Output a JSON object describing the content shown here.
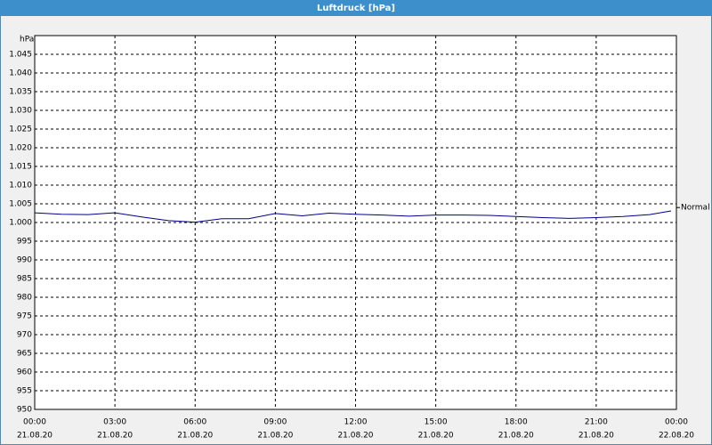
{
  "chart_data": {
    "type": "line",
    "title": "Luftdruck [hPa]",
    "y_unit": "hPa",
    "x": [
      0,
      1,
      2,
      3,
      4,
      5,
      6,
      7,
      8,
      9,
      10,
      11,
      12,
      13,
      14,
      15,
      16,
      17,
      18,
      19,
      20,
      21,
      22,
      23,
      23.8
    ],
    "series": [
      {
        "color": "#00008b",
        "values": [
          1002.6,
          1002.2,
          1002.1,
          1002.6,
          1001.5,
          1000.5,
          1000.1,
          1001.0,
          1001.0,
          1002.4,
          1001.8,
          1002.5,
          1002.2,
          1002.0,
          1001.7,
          1002.0,
          1002.0,
          1001.9,
          1001.6,
          1001.3,
          1001.1,
          1001.3,
          1001.6,
          1002.1,
          1003.1
        ]
      }
    ],
    "annotations": [
      {
        "text": "Normal",
        "value": 1004
      }
    ],
    "xlim": [
      0,
      24
    ],
    "xticks": [
      {
        "value": 0,
        "label": "00:00"
      },
      {
        "value": 3,
        "label": "03:00"
      },
      {
        "value": 6,
        "label": "06:00"
      },
      {
        "value": 9,
        "label": "09:00"
      },
      {
        "value": 12,
        "label": "12:00"
      },
      {
        "value": 15,
        "label": "15:00"
      },
      {
        "value": 18,
        "label": "18:00"
      },
      {
        "value": 21,
        "label": "21:00"
      },
      {
        "value": 24,
        "label": "00:00"
      }
    ],
    "xtick_dates": [
      "21.08.20",
      "21.08.20",
      "21.08.20",
      "21.08.20",
      "21.08.20",
      "21.08.20",
      "21.08.20",
      "21.08.20",
      "22.08.20"
    ],
    "ylim": [
      950,
      1050
    ],
    "yticks": [
      950,
      955,
      960,
      965,
      970,
      975,
      980,
      985,
      990,
      995,
      {
        "value": 1000,
        "label": "1.000"
      },
      {
        "value": 1005,
        "label": "1.005"
      },
      {
        "value": 1010,
        "label": "1.010"
      },
      {
        "value": 1015,
        "label": "1.015"
      },
      {
        "value": 1020,
        "label": "1.020"
      },
      {
        "value": 1025,
        "label": "1.025"
      },
      {
        "value": 1030,
        "label": "1.030"
      },
      {
        "value": 1035,
        "label": "1.035"
      },
      {
        "value": 1040,
        "label": "1.040"
      },
      {
        "value": 1045,
        "label": "1.045"
      }
    ],
    "grid": true
  }
}
